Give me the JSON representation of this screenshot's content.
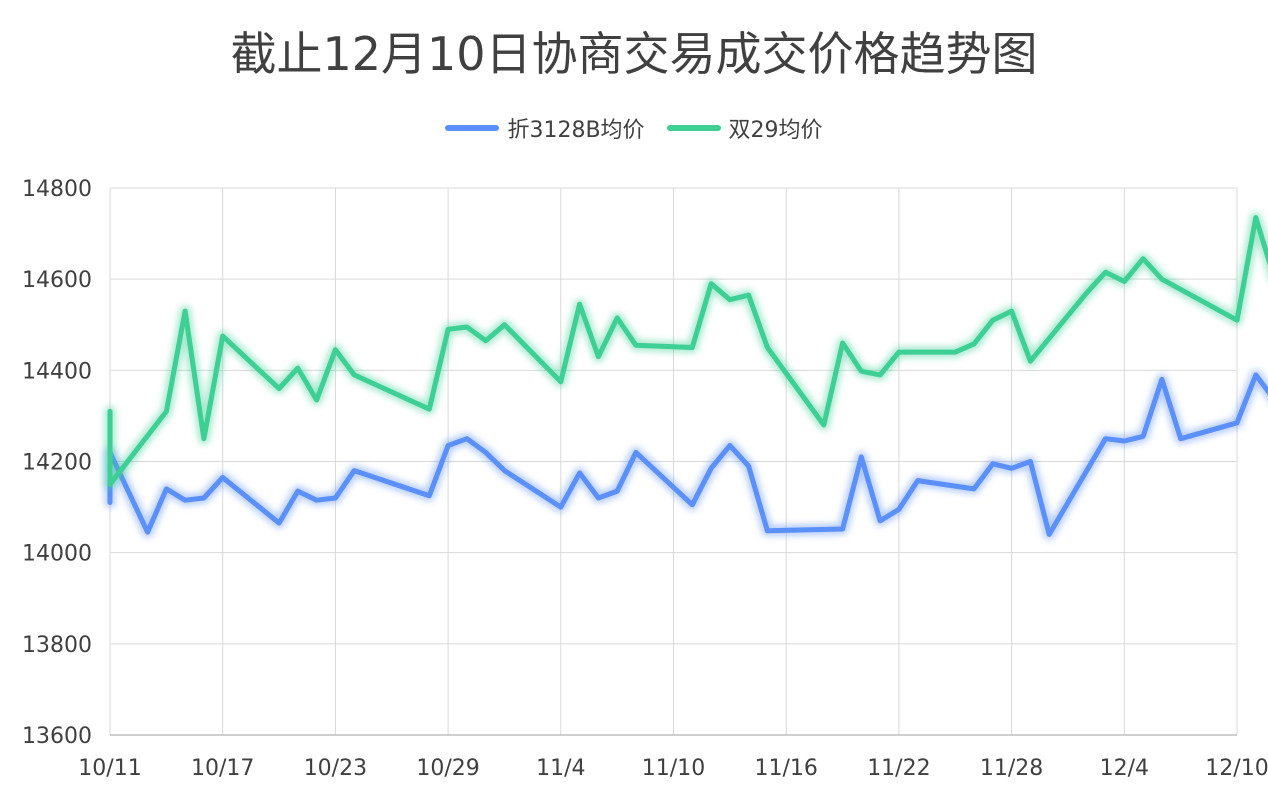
{
  "chart_data": {
    "type": "line",
    "title": "截止12月10日协商交易成交价格趋势图",
    "xlabel": "",
    "ylabel": "",
    "ylim": [
      13600,
      14800
    ],
    "yticks": [
      13600,
      13800,
      14000,
      14200,
      14400,
      14600,
      14800
    ],
    "xlim": [
      "2023-10-11",
      "2023-12-10"
    ],
    "xticks": [
      "10/11",
      "10/17",
      "10/23",
      "10/29",
      "11/4",
      "11/10",
      "11/16",
      "11/22",
      "11/28",
      "12/4",
      "12/10"
    ],
    "grid": true,
    "legend_position": "top-center",
    "series": [
      {
        "name": "折3128B均价",
        "color": "#5b8ff9",
        "points": [
          [
            "2023-10-11",
            14110
          ],
          [
            "2023-10-11",
            14220
          ],
          [
            "2023-10-13",
            14045
          ],
          [
            "2023-10-14",
            14140
          ],
          [
            "2023-10-15",
            14115
          ],
          [
            "2023-10-16",
            14120
          ],
          [
            "2023-10-17",
            14165
          ],
          [
            "2023-10-20",
            14065
          ],
          [
            "2023-10-21",
            14135
          ],
          [
            "2023-10-22",
            14115
          ],
          [
            "2023-10-23",
            14120
          ],
          [
            "2023-10-24",
            14180
          ],
          [
            "2023-10-28",
            14125
          ],
          [
            "2023-10-29",
            14235
          ],
          [
            "2023-10-30",
            14250
          ],
          [
            "2023-10-31",
            14220
          ],
          [
            "2023-11-01",
            14180
          ],
          [
            "2023-11-04",
            14100
          ],
          [
            "2023-11-05",
            14175
          ],
          [
            "2023-11-06",
            14120
          ],
          [
            "2023-11-07",
            14135
          ],
          [
            "2023-11-08",
            14220
          ],
          [
            "2023-11-11",
            14105
          ],
          [
            "2023-11-12",
            14185
          ],
          [
            "2023-11-13",
            14235
          ],
          [
            "2023-11-14",
            14190
          ],
          [
            "2023-11-15",
            14048
          ],
          [
            "2023-11-19",
            14052
          ],
          [
            "2023-11-20",
            14210
          ],
          [
            "2023-11-21",
            14070
          ],
          [
            "2023-11-22",
            14095
          ],
          [
            "2023-11-23",
            14158
          ],
          [
            "2023-11-26",
            14140
          ],
          [
            "2023-11-27",
            14195
          ],
          [
            "2023-11-28",
            14185
          ],
          [
            "2023-11-29",
            14200
          ],
          [
            "2023-11-30",
            14040
          ],
          [
            "2023-12-03",
            14250
          ],
          [
            "2023-12-04",
            14245
          ],
          [
            "2023-12-05",
            14255
          ],
          [
            "2023-12-06",
            14380
          ],
          [
            "2023-12-07",
            14250
          ],
          [
            "2023-12-10",
            14285
          ],
          [
            "2023-12-11",
            14390
          ],
          [
            "2023-12-12",
            14335
          ]
        ]
      },
      {
        "name": "双29均价",
        "color": "#3ecf95",
        "points": [
          [
            "2023-10-11",
            14310
          ],
          [
            "2023-10-11",
            14150
          ],
          [
            "2023-10-14",
            14310
          ],
          [
            "2023-10-15",
            14530
          ],
          [
            "2023-10-16",
            14250
          ],
          [
            "2023-10-17",
            14475
          ],
          [
            "2023-10-20",
            14360
          ],
          [
            "2023-10-21",
            14405
          ],
          [
            "2023-10-22",
            14335
          ],
          [
            "2023-10-23",
            14445
          ],
          [
            "2023-10-24",
            14390
          ],
          [
            "2023-10-28",
            14315
          ],
          [
            "2023-10-29",
            14490
          ],
          [
            "2023-10-30",
            14495
          ],
          [
            "2023-10-31",
            14465
          ],
          [
            "2023-11-01",
            14500
          ],
          [
            "2023-11-04",
            14375
          ],
          [
            "2023-11-05",
            14545
          ],
          [
            "2023-11-06",
            14430
          ],
          [
            "2023-11-07",
            14515
          ],
          [
            "2023-11-08",
            14455
          ],
          [
            "2023-11-11",
            14450
          ],
          [
            "2023-11-12",
            14590
          ],
          [
            "2023-11-13",
            14555
          ],
          [
            "2023-11-14",
            14565
          ],
          [
            "2023-11-15",
            14450
          ],
          [
            "2023-11-18",
            14280
          ],
          [
            "2023-11-19",
            14460
          ],
          [
            "2023-11-20",
            14398
          ],
          [
            "2023-11-21",
            14390
          ],
          [
            "2023-11-22",
            14440
          ],
          [
            "2023-11-25",
            14440
          ],
          [
            "2023-11-26",
            14458
          ],
          [
            "2023-11-27",
            14510
          ],
          [
            "2023-11-28",
            14530
          ],
          [
            "2023-11-29",
            14420
          ],
          [
            "2023-12-02",
            14570
          ],
          [
            "2023-12-03",
            14615
          ],
          [
            "2023-12-04",
            14595
          ],
          [
            "2023-12-05",
            14645
          ],
          [
            "2023-12-06",
            14600
          ],
          [
            "2023-12-10",
            14510
          ],
          [
            "2023-12-11",
            14735
          ],
          [
            "2023-12-12",
            14600
          ]
        ]
      }
    ]
  }
}
